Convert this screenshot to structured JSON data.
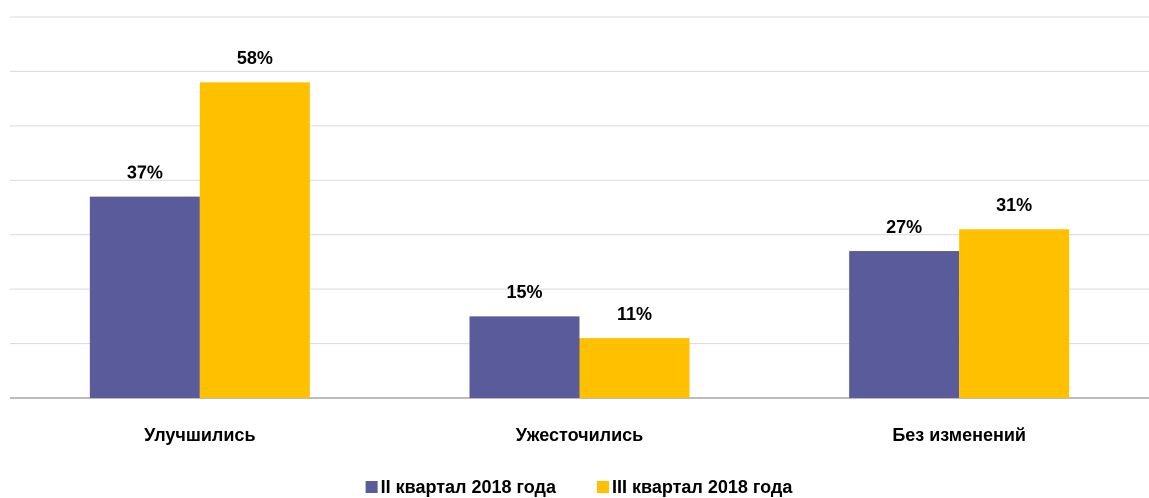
{
  "chart_data": {
    "type": "bar",
    "categories": [
      "Улучшились",
      "Ужесточились",
      "Без изменений"
    ],
    "series": [
      {
        "name": "II квартал 2018 года",
        "color": "#5a5b9a",
        "values": [
          37,
          15,
          27
        ],
        "value_labels": [
          "37%",
          "15%",
          "27%"
        ]
      },
      {
        "name": "III квартал 2018 года",
        "color": "#ffc000",
        "values": [
          58,
          11,
          31
        ],
        "value_labels": [
          "58%",
          "11%",
          "31%"
        ]
      }
    ],
    "ylim": [
      0,
      70
    ],
    "yticks": [
      0,
      10,
      20,
      30,
      40,
      50,
      60,
      70
    ],
    "grid": true,
    "legend": "bottom"
  }
}
